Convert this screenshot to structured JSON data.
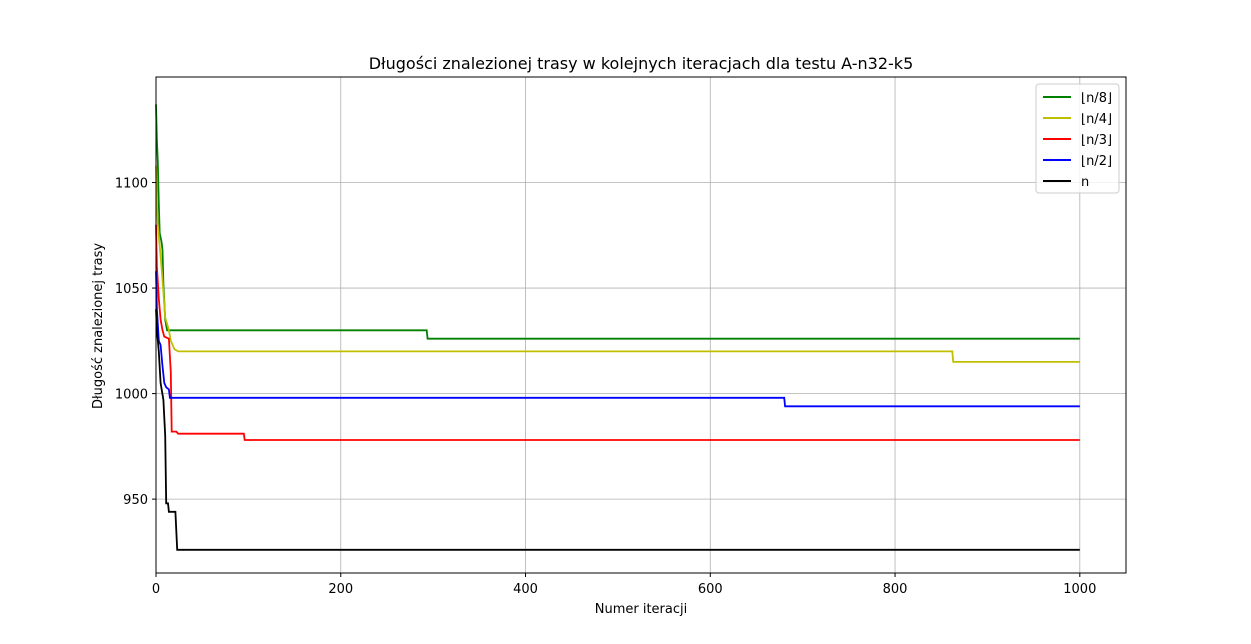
{
  "chart_data": {
    "type": "line",
    "title": "Długości znalezionej trasy w kolejnych iteracjach dla testu A-n32-k5",
    "xlabel": "Numer iteracji",
    "ylabel": "Długość znalezionej trasy",
    "xlim": [
      0,
      1050
    ],
    "ylim": [
      915,
      1150
    ],
    "xticks": [
      0,
      200,
      400,
      600,
      800,
      1000
    ],
    "yticks": [
      950,
      1000,
      1050,
      1100
    ],
    "grid": true,
    "legend_position": "upper right",
    "series": [
      {
        "name": "⌊n/8⌋",
        "color": "#008000",
        "points": [
          [
            0,
            1137
          ],
          [
            1,
            1120
          ],
          [
            2,
            1110
          ],
          [
            3,
            1090
          ],
          [
            4,
            1076
          ],
          [
            6,
            1072
          ],
          [
            7,
            1068
          ],
          [
            8,
            1052
          ],
          [
            10,
            1035
          ],
          [
            12,
            1030
          ],
          [
            293,
            1030
          ],
          [
            294,
            1026
          ],
          [
            1000,
            1026
          ]
        ]
      },
      {
        "name": "⌊n/4⌋",
        "color": "#bfbf00",
        "points": [
          [
            0,
            1108
          ],
          [
            1,
            1090
          ],
          [
            2,
            1080
          ],
          [
            4,
            1070
          ],
          [
            6,
            1060
          ],
          [
            8,
            1048
          ],
          [
            10,
            1036
          ],
          [
            12,
            1033
          ],
          [
            14,
            1030
          ],
          [
            16,
            1025
          ],
          [
            20,
            1021
          ],
          [
            24,
            1020
          ],
          [
            862,
            1020
          ],
          [
            863,
            1015
          ],
          [
            1000,
            1015
          ]
        ]
      },
      {
        "name": "⌊n/3⌋",
        "color": "#ff0000",
        "points": [
          [
            0,
            1080
          ],
          [
            1,
            1060
          ],
          [
            3,
            1045
          ],
          [
            5,
            1035
          ],
          [
            7,
            1030
          ],
          [
            9,
            1027
          ],
          [
            14,
            1026
          ],
          [
            16,
            1010
          ],
          [
            17,
            982
          ],
          [
            22,
            982
          ],
          [
            24,
            981
          ],
          [
            95,
            981
          ],
          [
            96,
            978
          ],
          [
            1000,
            978
          ]
        ]
      },
      {
        "name": "⌊n/2⌋",
        "color": "#0000ff",
        "points": [
          [
            0,
            1058
          ],
          [
            1,
            1040
          ],
          [
            3,
            1025
          ],
          [
            5,
            1023
          ],
          [
            7,
            1013
          ],
          [
            9,
            1005
          ],
          [
            11,
            1003
          ],
          [
            14,
            1002
          ],
          [
            15,
            998
          ],
          [
            680,
            998
          ],
          [
            681,
            994
          ],
          [
            1000,
            994
          ]
        ]
      },
      {
        "name": "n",
        "color": "#000000",
        "points": [
          [
            0,
            1040
          ],
          [
            1,
            1030
          ],
          [
            3,
            1020
          ],
          [
            5,
            1005
          ],
          [
            8,
            997
          ],
          [
            10,
            980
          ],
          [
            11,
            948
          ],
          [
            13,
            948
          ],
          [
            14,
            944
          ],
          [
            21,
            944
          ],
          [
            23,
            926
          ],
          [
            1000,
            926
          ]
        ]
      }
    ]
  }
}
